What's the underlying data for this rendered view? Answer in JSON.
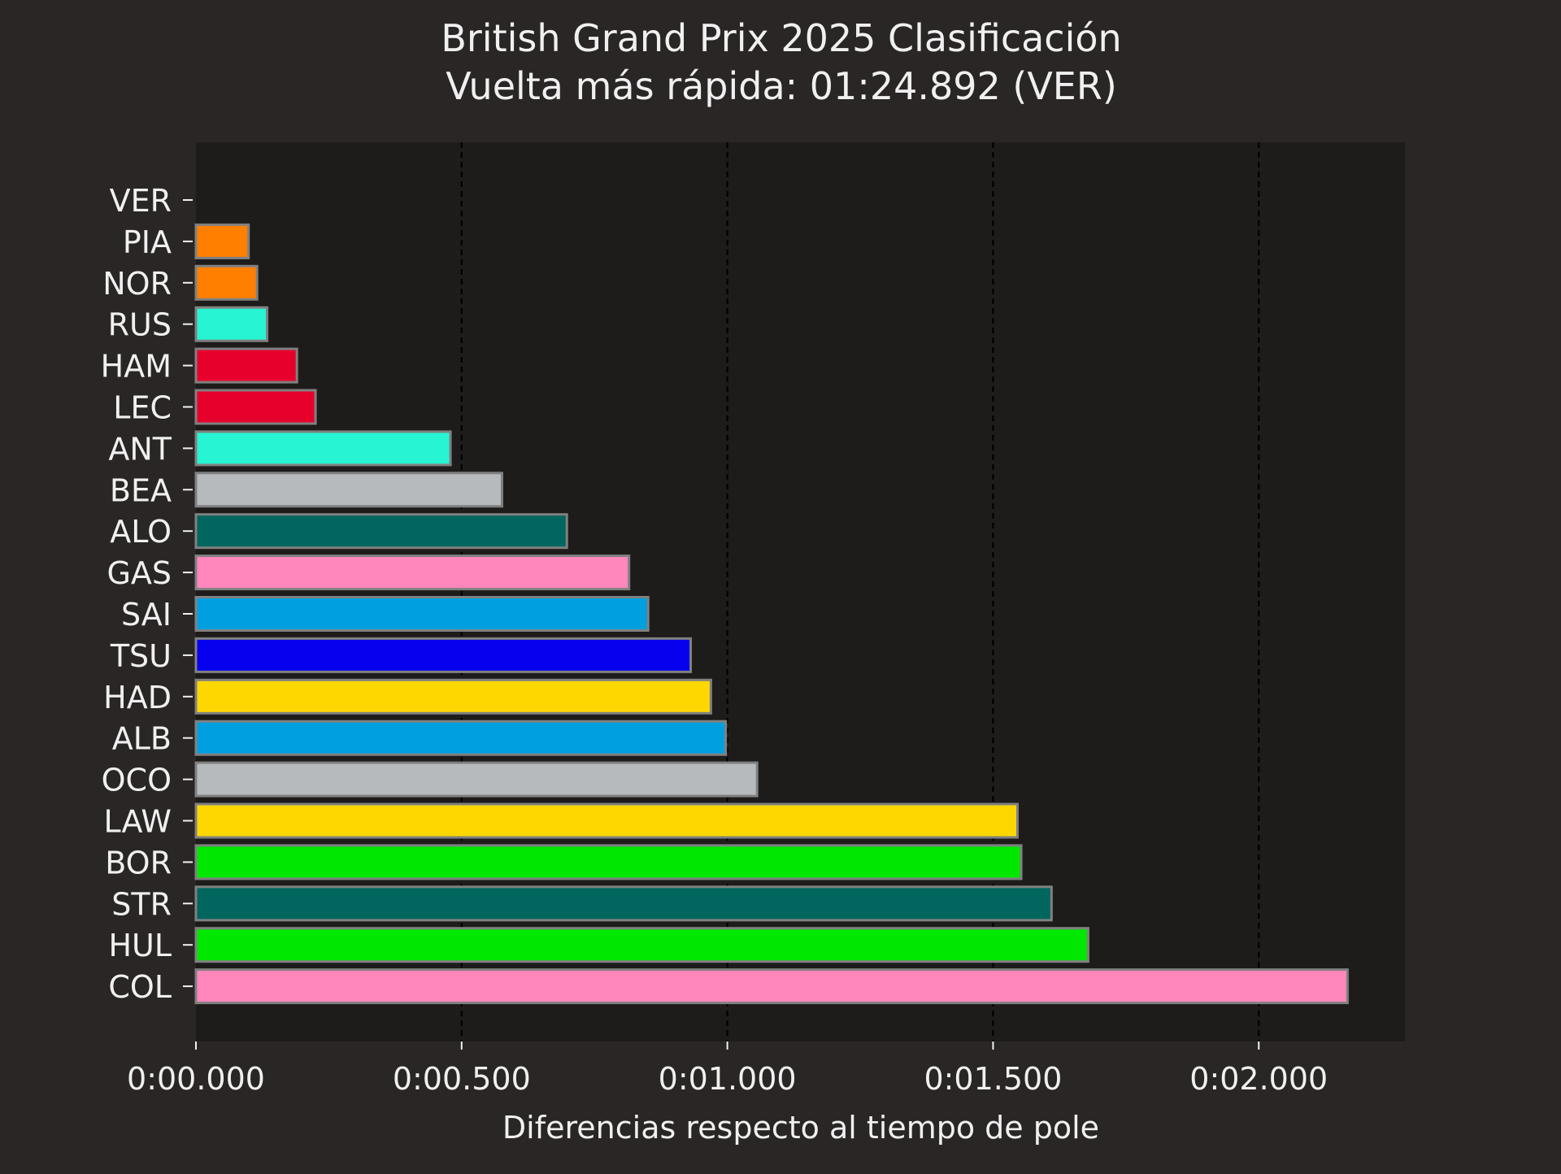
{
  "chart_data": {
    "type": "bar",
    "orientation": "horizontal",
    "title": "British Grand Prix 2025 Clasificación",
    "subtitle": "Vuelta más rápida: 01:24.892 (VER)",
    "xlabel": "Diferencias respecto al tiempo de pole",
    "ylabel": "",
    "xlim": [
      0,
      2.275
    ],
    "x_ticks": [
      0,
      0.5,
      1.0,
      1.5,
      2.0
    ],
    "x_tick_labels": [
      "0:00.000",
      "0:00.500",
      "0:01.000",
      "0:01.500",
      "0:02.000"
    ],
    "grid": "vertical-dashed",
    "legend": "none",
    "categories": [
      "VER",
      "PIA",
      "NOR",
      "RUS",
      "HAM",
      "LEC",
      "ANT",
      "BEA",
      "ALO",
      "GAS",
      "SAI",
      "TSU",
      "HAD",
      "ALB",
      "OCO",
      "LAW",
      "BOR",
      "STR",
      "HUL",
      "COL"
    ],
    "values": [
      0.0,
      0.099,
      0.115,
      0.134,
      0.19,
      0.225,
      0.479,
      0.576,
      0.698,
      0.815,
      0.851,
      0.931,
      0.969,
      0.997,
      1.056,
      1.546,
      1.553,
      1.61,
      1.679,
      2.167
    ],
    "colors": [
      "#0600ef",
      "#ff8000",
      "#ff8000",
      "#27f4d2",
      "#e8002d",
      "#e8002d",
      "#27f4d2",
      "#b6babd",
      "#00665e",
      "#ff87bc",
      "#00a0de",
      "#0600ef",
      "#ffd700",
      "#00a0de",
      "#b6babd",
      "#ffd700",
      "#00e700",
      "#00665e",
      "#00e700",
      "#ff87bc"
    ],
    "bar_edge_color": "#808080",
    "background_color": "#292625",
    "plot_background_color": "#1e1c1b",
    "text_color": "#f0f0f0"
  }
}
